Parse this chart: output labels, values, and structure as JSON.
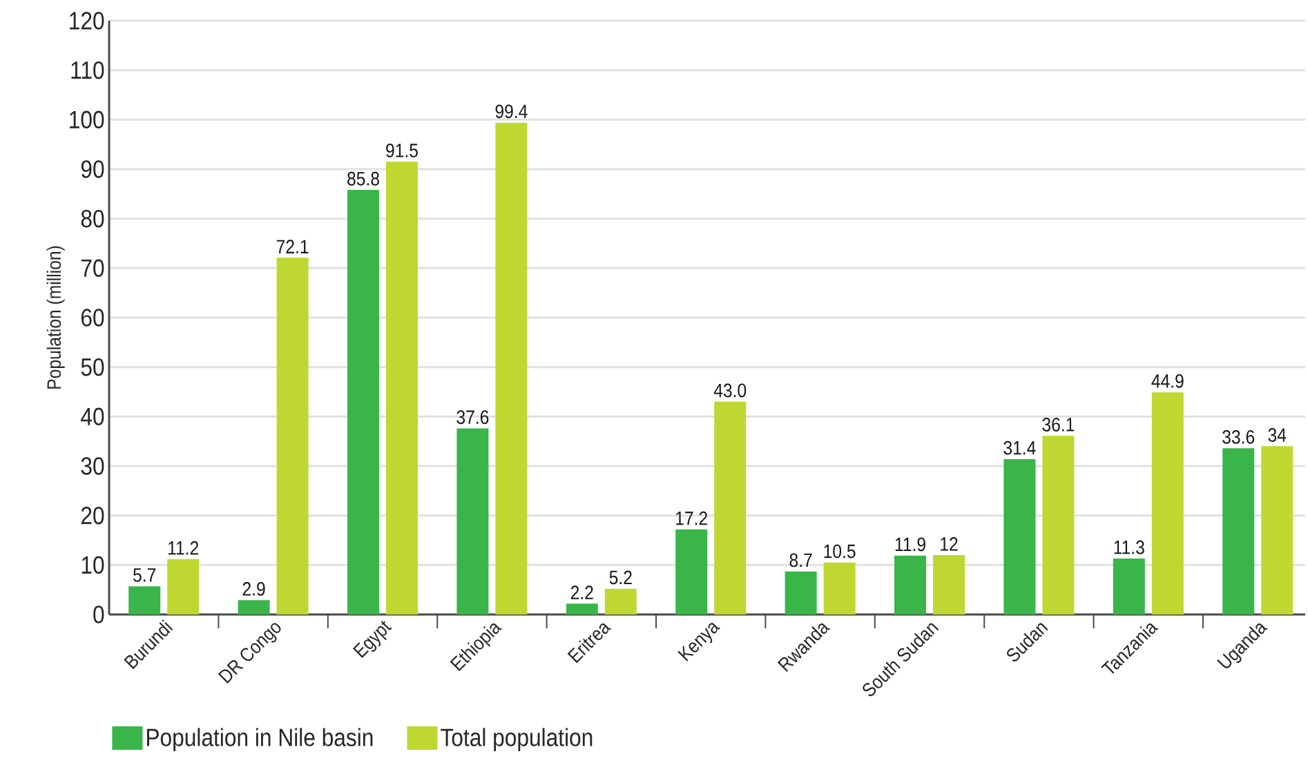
{
  "chart_data": {
    "type": "bar",
    "ylabel": "Population (million)",
    "categories": [
      "Burundi",
      "DR Congo",
      "Egypt",
      "Ethiopia",
      "Eritrea",
      "Kenya",
      "Rwanda",
      "South Sudan",
      "Sudan",
      "Tanzania",
      "Uganda"
    ],
    "series": [
      {
        "name": "Population in Nile basin",
        "color": "#39b54a",
        "values": [
          5.7,
          2.9,
          85.8,
          37.6,
          2.2,
          17.2,
          8.7,
          11.9,
          31.4,
          11.3,
          33.6
        ],
        "value_labels": [
          "5.7",
          "2.9",
          "85.8",
          "37.6",
          "2.2",
          "17.2",
          "8.7",
          "11.9",
          "31.4",
          "11.3",
          "33.6"
        ]
      },
      {
        "name": "Total population",
        "color": "#c0d731",
        "values": [
          11.2,
          72.1,
          91.5,
          99.4,
          5.2,
          43.0,
          10.5,
          12,
          36.1,
          44.9,
          34
        ],
        "value_labels": [
          "11.2",
          "72.1",
          "91.5",
          "99.4",
          "5.2",
          "43.0",
          "10.5",
          "12",
          "36.1",
          "44.9",
          "34"
        ]
      }
    ],
    "ylim": [
      0,
      120
    ],
    "yticks": [
      0,
      10,
      20,
      30,
      40,
      50,
      60,
      70,
      80,
      90,
      100,
      110,
      120
    ],
    "grid": "y",
    "legend": "bottom left"
  }
}
